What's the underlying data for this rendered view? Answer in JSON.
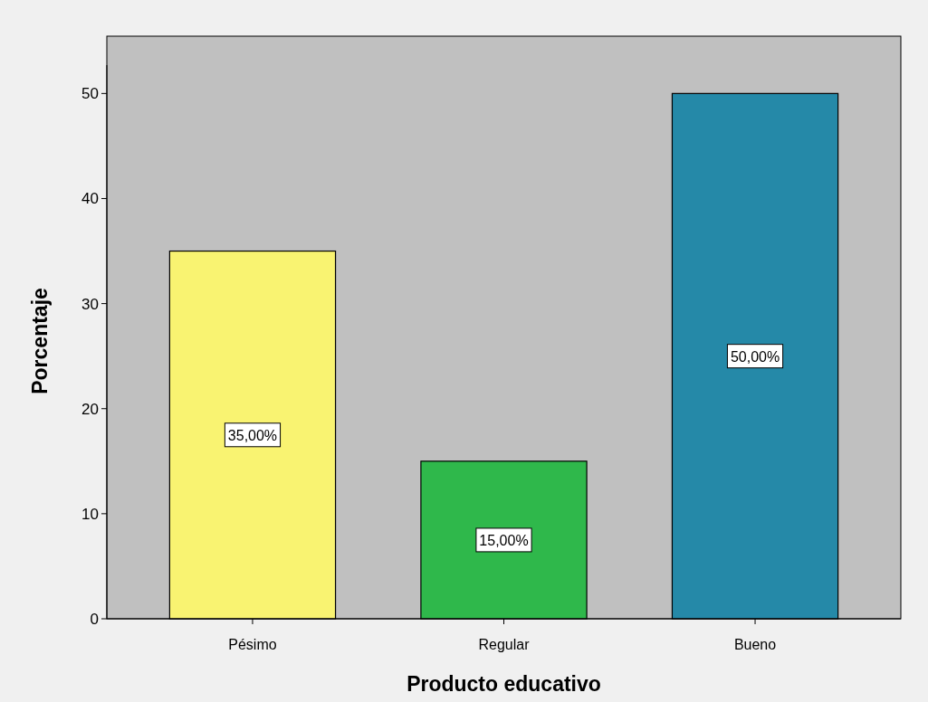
{
  "chart_data": {
    "type": "bar",
    "xlabel": "Producto educativo",
    "ylabel": "Porcentaje",
    "categories": [
      "Pésimo",
      "Regular",
      "Bueno"
    ],
    "values": [
      35,
      15,
      50
    ],
    "colors": [
      "#f9f371",
      "#2fb84b",
      "#2589a8"
    ],
    "value_labels": [
      "35,00%",
      "15,00%",
      "50,00%"
    ],
    "ylim": [
      0,
      52.7
    ],
    "yticks": [
      0,
      10,
      20,
      30,
      40,
      50
    ],
    "grid": false
  }
}
